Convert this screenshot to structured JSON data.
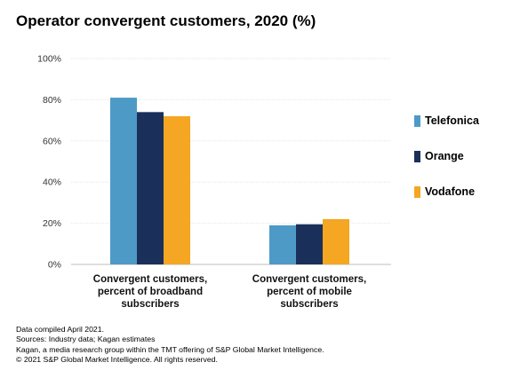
{
  "title": "Operator convergent customers, 2020 (%)",
  "chart_data": {
    "type": "bar",
    "categories": [
      [
        "Convergent customers,",
        "percent of broadband",
        "subscribers"
      ],
      [
        "Convergent customers,",
        "percent of mobile",
        "subscribers"
      ]
    ],
    "series": [
      {
        "name": "Telefonica",
        "color": "#4e9ac7",
        "values": [
          81,
          19
        ]
      },
      {
        "name": "Orange",
        "color": "#1b2f5b",
        "values": [
          74,
          19.5
        ]
      },
      {
        "name": "Vodafone",
        "color": "#f5a623",
        "values": [
          72,
          22
        ]
      }
    ],
    "ylim": [
      0,
      100
    ],
    "yticks": [
      "0%",
      "20%",
      "40%",
      "60%",
      "80%",
      "100%"
    ],
    "grid": true,
    "legend_position": "right",
    "xlabel": "",
    "ylabel": ""
  },
  "footnotes": [
    "Data compiled April 2021.",
    "Sources: Industry data; Kagan estimates",
    "Kagan, a media research group within the TMT offering of S&P Global Market Intelligence.",
    "© 2021 S&P Global Market Intelligence. All rights reserved."
  ]
}
